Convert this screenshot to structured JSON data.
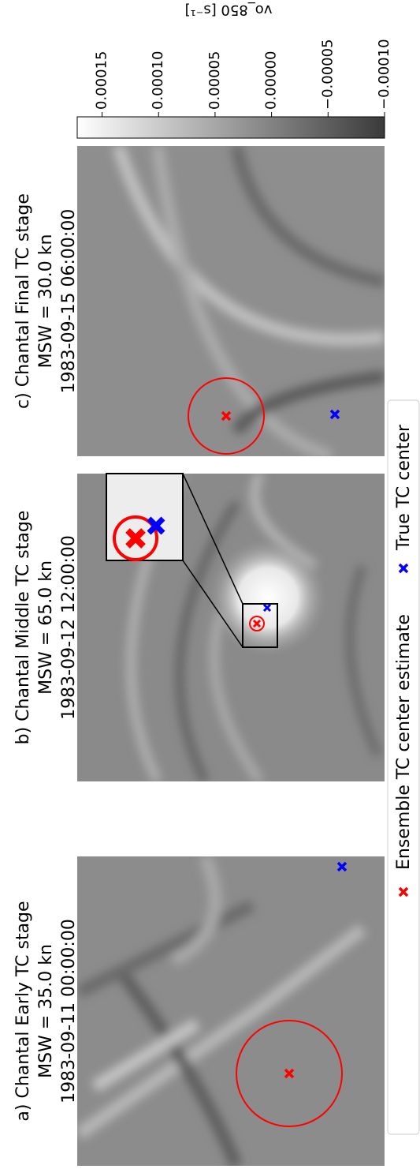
{
  "chart_data": {
    "type": "heatmap",
    "panels": [
      {
        "title_lines": [
          "a) Chantal Early TC stage",
          "MSW = 35.0 kn",
          "1983-09-11 00:00:00"
        ]
      },
      {
        "title_lines": [
          "b) Chantal Middle TC stage",
          "MSW = 65.0 kn",
          "1983-09-12 12:00:00"
        ]
      },
      {
        "title_lines": [
          "c) Chantal Final TC stage",
          "MSW = 30.0 kn",
          "1983-09-15 06:00:00"
        ]
      }
    ],
    "legend": [
      {
        "name": "Ensemble TC center estimate",
        "color": "#ff0000"
      },
      {
        "name": "True TC center",
        "color": "#0000ff"
      }
    ],
    "colorbar": {
      "label": "vo_850 [s⁻¹]",
      "lim": [
        -0.0001,
        0.000172
      ],
      "colors": [
        "#ffffff",
        "#3a3a3a"
      ],
      "ticks": [
        0.00015,
        {
          "value": 0.0001,
          "label": "0.00010"
        },
        5e-05,
        {
          "value": 0,
          "label": "0.00000"
        },
        {
          "value": -5e-05,
          "label": "−0.00005"
        },
        {
          "value": -0.0001,
          "label": "−0.00010"
        }
      ]
    }
  }
}
